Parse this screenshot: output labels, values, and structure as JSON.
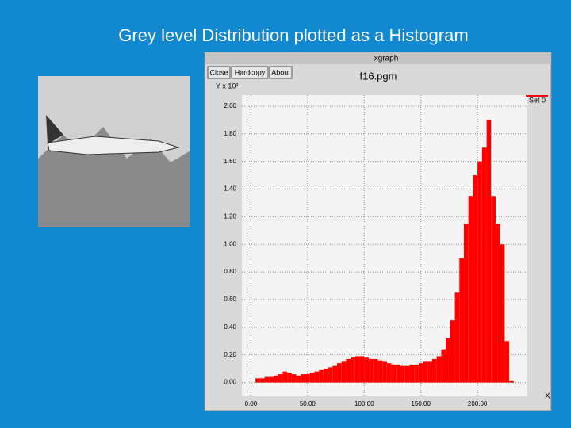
{
  "slide_title": "Grey level Distribution plotted as a Histogram",
  "window": {
    "title": "xgraph",
    "buttons": [
      "Close",
      "Hardcopy",
      "About"
    ]
  },
  "chart_data": {
    "type": "histogram",
    "title": "f16.pgm",
    "x_label": "X",
    "y_label": "Y x 10³",
    "bins": [
      0,
      4,
      8,
      12,
      16,
      20,
      24,
      28,
      32,
      36,
      40,
      44,
      48,
      52,
      56,
      60,
      64,
      68,
      72,
      76,
      80,
      84,
      88,
      92,
      96,
      100,
      104,
      108,
      112,
      116,
      120,
      124,
      128,
      132,
      136,
      140,
      144,
      148,
      152,
      156,
      160,
      164,
      168,
      172,
      176,
      180,
      184,
      188,
      192,
      196,
      200,
      204,
      208,
      212,
      216,
      220,
      224,
      228,
      232
    ],
    "series": [
      {
        "name": "Set 0",
        "color": "#ff0000",
        "values": [
          0,
          0.03,
          0.03,
          0.04,
          0.04,
          0.05,
          0.06,
          0.08,
          0.07,
          0.06,
          0.05,
          0.06,
          0.06,
          0.07,
          0.08,
          0.09,
          0.1,
          0.11,
          0.12,
          0.14,
          0.15,
          0.17,
          0.18,
          0.19,
          0.19,
          0.18,
          0.17,
          0.17,
          0.16,
          0.15,
          0.14,
          0.13,
          0.13,
          0.12,
          0.12,
          0.13,
          0.13,
          0.14,
          0.15,
          0.15,
          0.17,
          0.19,
          0.24,
          0.32,
          0.45,
          0.65,
          0.9,
          1.15,
          1.35,
          1.5,
          1.6,
          1.7,
          1.9,
          1.35,
          1.15,
          1.0,
          0.3,
          0.01
        ]
      }
    ],
    "xlim": [
      -8,
      244
    ],
    "ylim": [
      -0.1,
      2.08
    ],
    "xticks": [
      {
        "value": 0,
        "label": "0.00"
      },
      {
        "value": 50,
        "label": "50.00"
      },
      {
        "value": 100,
        "label": "100.00"
      },
      {
        "value": 150,
        "label": "150.00"
      },
      {
        "value": 200,
        "label": "200.00"
      }
    ],
    "yticks": [
      {
        "value": 0,
        "label": "0.00"
      },
      {
        "value": 0.2,
        "label": "0.20"
      },
      {
        "value": 0.4,
        "label": "0.40"
      },
      {
        "value": 0.6,
        "label": "0.60"
      },
      {
        "value": 0.8,
        "label": "0.80"
      },
      {
        "value": 1,
        "label": "1.00"
      },
      {
        "value": 1.2,
        "label": "1.20"
      },
      {
        "value": 1.4,
        "label": "1.40"
      },
      {
        "value": 1.6,
        "label": "1.60"
      },
      {
        "value": 1.8,
        "label": "1.80"
      },
      {
        "value": 2,
        "label": "2.00"
      }
    ],
    "grid": true,
    "legend": "top-right"
  }
}
